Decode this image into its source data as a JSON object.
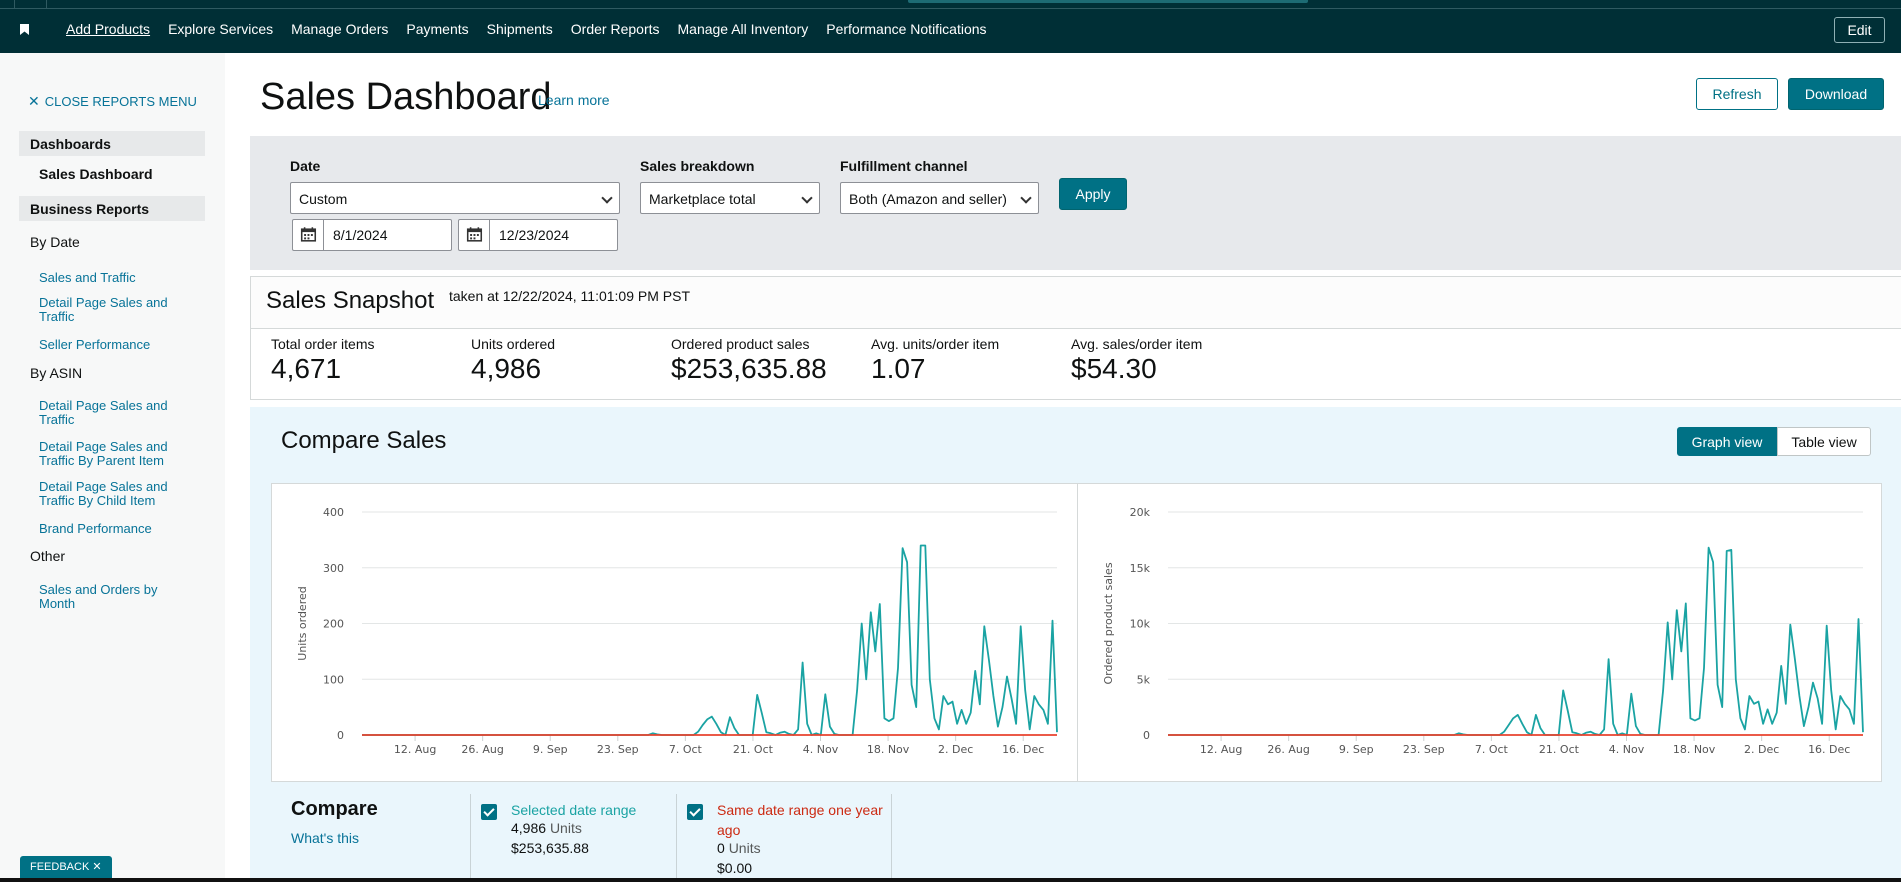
{
  "nav": {
    "items": [
      "Add Products",
      "Explore Services",
      "Manage Orders",
      "Payments",
      "Shipments",
      "Order Reports",
      "Manage All Inventory",
      "Performance Notifications"
    ],
    "edit_label": "Edit"
  },
  "sidebar": {
    "close_label": "CLOSE REPORTS MENU",
    "dashboards_header": "Dashboards",
    "dashboards_active": "Sales Dashboard",
    "business_header": "Business Reports",
    "by_date": "By Date",
    "by_date_links": [
      "Sales and Traffic",
      "Detail Page Sales and Traffic",
      "Seller Performance"
    ],
    "by_asin": "By ASIN",
    "by_asin_links": [
      "Detail Page Sales and Traffic",
      "Detail Page Sales and Traffic By Parent Item",
      "Detail Page Sales and Traffic By Child Item",
      "Brand Performance"
    ],
    "other": "Other",
    "other_links": [
      "Sales and Orders by Month"
    ]
  },
  "page": {
    "title": "Sales Dashboard",
    "learn_more": "Learn more",
    "refresh_label": "Refresh",
    "download_label": "Download"
  },
  "filters": {
    "date_label": "Date",
    "date_value": "Custom",
    "start_date": "8/1/2024",
    "end_date": "12/23/2024",
    "breakdown_label": "Sales breakdown",
    "breakdown_value": "Marketplace total",
    "channel_label": "Fulfillment channel",
    "channel_value": "Both (Amazon and seller)",
    "apply_label": "Apply"
  },
  "snapshot": {
    "title": "Sales Snapshot",
    "taken": "taken at 12/22/2024, 11:01:09 PM PST",
    "metrics": [
      {
        "label": "Total order items",
        "value": "4,671"
      },
      {
        "label": "Units ordered",
        "value": "4,986"
      },
      {
        "label": "Ordered product sales",
        "value": "$253,635.88"
      },
      {
        "label": "Avg. units/order item",
        "value": "1.07"
      },
      {
        "label": "Avg. sales/order item",
        "value": "$54.30"
      }
    ]
  },
  "compare": {
    "title": "Compare Sales",
    "graph_view": "Graph view",
    "table_view": "Table view",
    "legend_title": "Compare",
    "whats_this": "What's this",
    "selected": {
      "name": "Selected date range",
      "units_value": "4,986",
      "units_word": "Units",
      "sales": "$253,635.88"
    },
    "last_year": {
      "name": "Same date range one year ago",
      "units_value": "0",
      "units_word": "Units",
      "sales": "$0.00"
    }
  },
  "colors": {
    "selected_series": "#1aa3a3",
    "last_year_series": "#e8432e",
    "nav_bg": "#002f36",
    "primary_button": "#007185"
  },
  "feedback_label": "FEEDBACK",
  "chart_data": [
    {
      "type": "line",
      "ylabel": "Units ordered",
      "ylim": [
        0,
        400
      ],
      "yticks": [
        "0",
        "100",
        "200",
        "300",
        "400"
      ],
      "xticks": [
        "12. Aug",
        "26. Aug",
        "9. Sep",
        "23. Sep",
        "7. Oct",
        "21. Oct",
        "4. Nov",
        "18. Nov",
        "2. Dec",
        "16. Dec"
      ],
      "x_start": "2024-08-01",
      "x_end": "2024-12-23",
      "series": [
        {
          "name": "Selected date range",
          "values": [
            0,
            0,
            0,
            0,
            0,
            0,
            0,
            0,
            0,
            0,
            0,
            0,
            0,
            0,
            0,
            0,
            0,
            0,
            0,
            0,
            0,
            0,
            0,
            0,
            0,
            0,
            0,
            0,
            0,
            0,
            0,
            0,
            0,
            0,
            0,
            0,
            0,
            0,
            0,
            0,
            0,
            0,
            0,
            0,
            0,
            0,
            0,
            0,
            0,
            0,
            0,
            0,
            0,
            0,
            0,
            0,
            0,
            0,
            0,
            0,
            0,
            0,
            0,
            0,
            3,
            1,
            0,
            0,
            0,
            0,
            0,
            0,
            0,
            0,
            6,
            18,
            28,
            33,
            20,
            5,
            0,
            32,
            12,
            0,
            0,
            0,
            0,
            72,
            40,
            5,
            3,
            0,
            4,
            6,
            2,
            0,
            10,
            130,
            20,
            0,
            3,
            0,
            73,
            15,
            2,
            0,
            0,
            0,
            0,
            80,
            200,
            100,
            220,
            150,
            235,
            30,
            25,
            30,
            120,
            335,
            310,
            90,
            50,
            340,
            340,
            100,
            30,
            10,
            70,
            55,
            60,
            20,
            45,
            20,
            40,
            115,
            55,
            195,
            135,
            70,
            15,
            50,
            105,
            65,
            20,
            195,
            80,
            10,
            70,
            55,
            45,
            20,
            205,
            5
          ]
        },
        {
          "name": "Same date range one year ago",
          "values": [
            0,
            0,
            0,
            0,
            0,
            0,
            0,
            0,
            0,
            0,
            0,
            0,
            0,
            0,
            0,
            0,
            0,
            0,
            0,
            0,
            0,
            0,
            0,
            0,
            0,
            0,
            0,
            0,
            0,
            0,
            0,
            0,
            0,
            0,
            0,
            0,
            0,
            0,
            0,
            0,
            0,
            0,
            0,
            0,
            0,
            0,
            0,
            0,
            0,
            0,
            0,
            0,
            0,
            0,
            0,
            0,
            0,
            0,
            0,
            0,
            0,
            0,
            0,
            0,
            0,
            0,
            0,
            0,
            0,
            0,
            0,
            0,
            0,
            0,
            0,
            0,
            0,
            0,
            0,
            0,
            0,
            0,
            0,
            0,
            0,
            0,
            0,
            0,
            0,
            0,
            0,
            0,
            0,
            0,
            0,
            0,
            0,
            0,
            0,
            0,
            0,
            0,
            0,
            0,
            0,
            0,
            0,
            0,
            0,
            0,
            0,
            0,
            0,
            0,
            0,
            0,
            0,
            0,
            0,
            0,
            0,
            0,
            0,
            0,
            0,
            0,
            0,
            0,
            0,
            0,
            0,
            0,
            0,
            0,
            0,
            0,
            0,
            0,
            0,
            0,
            0,
            0,
            0,
            0,
            0,
            0
          ]
        }
      ]
    },
    {
      "type": "line",
      "ylabel": "Ordered product sales",
      "ylim": [
        0,
        20000
      ],
      "yticks": [
        "0",
        "5k",
        "10k",
        "15k",
        "20k"
      ],
      "xticks": [
        "12. Aug",
        "26. Aug",
        "9. Sep",
        "23. Sep",
        "7. Oct",
        "21. Oct",
        "4. Nov",
        "18. Nov",
        "2. Dec",
        "16. Dec"
      ],
      "x_start": "2024-08-01",
      "x_end": "2024-12-23",
      "series": [
        {
          "name": "Selected date range",
          "values": [
            0,
            0,
            0,
            0,
            0,
            0,
            0,
            0,
            0,
            0,
            0,
            0,
            0,
            0,
            0,
            0,
            0,
            0,
            0,
            0,
            0,
            0,
            0,
            0,
            0,
            0,
            0,
            0,
            0,
            0,
            0,
            0,
            0,
            0,
            0,
            0,
            0,
            0,
            0,
            0,
            0,
            0,
            0,
            0,
            0,
            0,
            0,
            0,
            0,
            0,
            0,
            0,
            0,
            0,
            0,
            0,
            0,
            0,
            0,
            0,
            0,
            0,
            0,
            0,
            150,
            50,
            0,
            0,
            0,
            0,
            0,
            0,
            0,
            0,
            300,
            900,
            1500,
            1800,
            1000,
            250,
            0,
            1800,
            600,
            0,
            0,
            0,
            0,
            4000,
            2200,
            250,
            150,
            0,
            200,
            300,
            100,
            0,
            500,
            6800,
            1000,
            0,
            150,
            0,
            3700,
            800,
            100,
            0,
            0,
            0,
            0,
            4000,
            10100,
            5000,
            11200,
            7500,
            11800,
            1500,
            1300,
            1500,
            6000,
            16800,
            15500,
            4500,
            2500,
            16500,
            16600,
            5000,
            1500,
            500,
            3500,
            2800,
            3000,
            1000,
            2300,
            1000,
            2000,
            6200,
            2800,
            9900,
            6800,
            3500,
            800,
            2500,
            4700,
            3300,
            1000,
            9800,
            4000,
            500,
            3500,
            2800,
            2300,
            1000,
            10400,
            250
          ]
        },
        {
          "name": "Same date range one year ago",
          "values": [
            0,
            0,
            0,
            0,
            0,
            0,
            0,
            0,
            0,
            0,
            0,
            0,
            0,
            0,
            0,
            0,
            0,
            0,
            0,
            0,
            0,
            0,
            0,
            0,
            0,
            0,
            0,
            0,
            0,
            0,
            0,
            0,
            0,
            0,
            0,
            0,
            0,
            0,
            0,
            0,
            0,
            0,
            0,
            0,
            0,
            0,
            0,
            0,
            0,
            0,
            0,
            0,
            0,
            0,
            0,
            0,
            0,
            0,
            0,
            0,
            0,
            0,
            0,
            0,
            0,
            0,
            0,
            0,
            0,
            0,
            0,
            0,
            0,
            0,
            0,
            0,
            0,
            0,
            0,
            0,
            0,
            0,
            0,
            0,
            0,
            0,
            0,
            0,
            0,
            0,
            0,
            0,
            0,
            0,
            0,
            0,
            0,
            0,
            0,
            0,
            0,
            0,
            0,
            0,
            0,
            0,
            0,
            0,
            0,
            0,
            0,
            0,
            0,
            0,
            0,
            0,
            0,
            0,
            0,
            0,
            0,
            0,
            0,
            0,
            0,
            0,
            0,
            0,
            0,
            0,
            0,
            0,
            0,
            0,
            0,
            0,
            0,
            0,
            0,
            0,
            0,
            0,
            0,
            0,
            0,
            0
          ]
        }
      ]
    }
  ]
}
